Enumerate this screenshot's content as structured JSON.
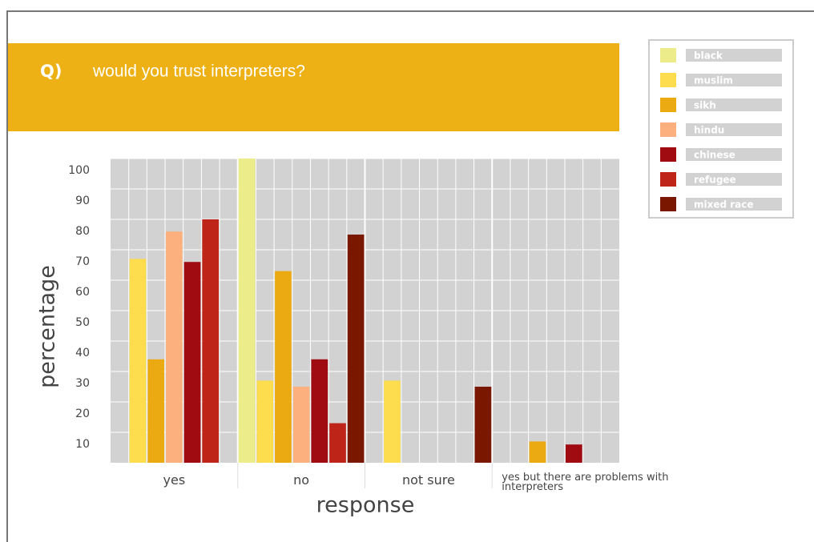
{
  "chart_data": {
    "type": "bar",
    "question_label": "Q)",
    "title": "would you trust interpreters?",
    "x_label": "response",
    "y_label": "percentage",
    "categories": [
      "yes",
      "no",
      "not sure",
      "yes but there are problems with interpreters"
    ],
    "series": [
      {
        "name": "black",
        "color": "#ecec8a",
        "values": [
          0,
          100,
          0,
          0
        ]
      },
      {
        "name": "muslim",
        "color": "#fddc4e",
        "values": [
          67,
          27,
          27,
          0
        ]
      },
      {
        "name": "sikh",
        "color": "#ecaa12",
        "values": [
          34,
          63,
          0,
          7
        ]
      },
      {
        "name": "hindu",
        "color": "#fbb07e",
        "values": [
          76,
          25,
          0,
          0
        ]
      },
      {
        "name": "chinese",
        "color": "#a00b12",
        "values": [
          66,
          34,
          0,
          6
        ]
      },
      {
        "name": "refugee",
        "color": "#be2418",
        "values": [
          80,
          13,
          0,
          0
        ]
      },
      {
        "name": "mixed race",
        "color": "#7a1700",
        "values": [
          0,
          75,
          25,
          0
        ]
      }
    ],
    "ylim": [
      0,
      100
    ],
    "yticks": [
      10,
      20,
      30,
      40,
      50,
      60,
      70,
      80,
      90,
      100
    ],
    "grid": true,
    "legend": "right"
  }
}
